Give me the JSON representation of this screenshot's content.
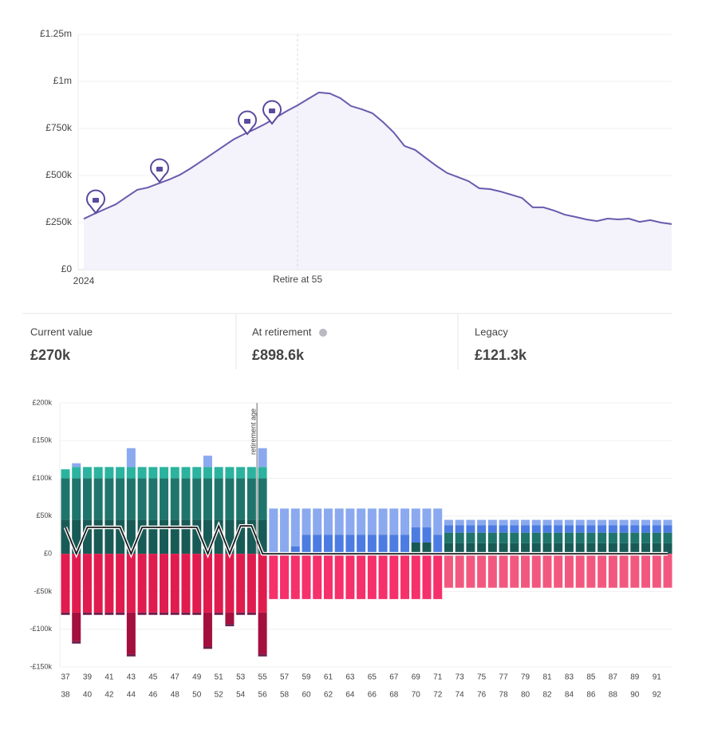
{
  "chart_data": [
    {
      "type": "area",
      "categories": [
        "2024",
        null,
        null,
        null,
        null,
        null,
        null,
        null,
        null,
        null,
        null,
        null,
        null,
        null,
        null,
        null,
        null,
        null,
        null,
        null,
        null,
        null,
        null,
        null,
        null,
        null,
        null,
        null,
        null,
        null,
        null,
        null,
        null,
        null,
        null,
        null,
        null,
        null,
        null,
        null,
        null,
        null,
        null,
        null,
        null,
        null,
        null,
        null,
        null,
        null,
        null,
        null,
        null,
        null,
        null,
        null
      ],
      "values": [
        270000,
        297000,
        322000,
        347000,
        386000,
        424000,
        436000,
        458000,
        479000,
        504000,
        538000,
        576000,
        614000,
        653000,
        691000,
        720000,
        746000,
        775000,
        809000,
        843000,
        873000,
        907000,
        941000,
        936000,
        911000,
        869000,
        852000,
        831000,
        784000,
        729000,
        657000,
        636000,
        593000,
        551000,
        513000,
        492000,
        470000,
        432000,
        428000,
        415000,
        398000,
        381000,
        331000,
        331000,
        314000,
        292000,
        280000,
        267000,
        258000,
        271000,
        267000,
        271000,
        254000,
        263000,
        250000,
        242000
      ],
      "color": "#6a5aae",
      "fill": "#f4f2fa",
      "ylim": [
        0,
        1250000
      ],
      "yticks": [
        {
          "value": 0,
          "label": "£0"
        },
        {
          "value": 250000,
          "label": "£250k"
        },
        {
          "value": 500000,
          "label": "£500k"
        },
        {
          "value": 750000,
          "label": "£750k"
        },
        {
          "value": 1000000,
          "label": "£1m"
        },
        {
          "value": 1250000,
          "label": "£1.25m"
        }
      ],
      "grid": true,
      "annotations": [
        {
          "text": "Retire at 55",
          "at": 20
        }
      ]
    },
    {
      "type": "bar",
      "stacked": true,
      "categories": [
        "37",
        "38",
        "39",
        "40",
        "41",
        "42",
        "43",
        "44",
        "45",
        "46",
        "47",
        "48",
        "49",
        "50",
        "51",
        "52",
        "53",
        "54",
        "55",
        "56",
        "57",
        "58",
        "59",
        "60",
        "61",
        "62",
        "63",
        "64",
        "65",
        "66",
        "67",
        "68",
        "69",
        "70",
        "71",
        "72",
        "73",
        "74",
        "75",
        "76",
        "77",
        "78",
        "79",
        "80",
        "81",
        "82",
        "83",
        "84",
        "85",
        "86",
        "87",
        "88",
        "89",
        "90",
        "91",
        "92"
      ],
      "ylim": [
        -150000,
        200000
      ],
      "yticks": [
        {
          "value": 200000,
          "label": "£200k"
        },
        {
          "value": 150000,
          "label": "£150k"
        },
        {
          "value": 100000,
          "label": "£100k"
        },
        {
          "value": 50000,
          "label": "£50k"
        },
        {
          "value": 0,
          "label": "£0"
        },
        {
          "value": -50000,
          "label": "-£50k"
        },
        {
          "value": -100000,
          "label": "-£100k"
        },
        {
          "value": -150000,
          "label": "-£150k"
        }
      ],
      "grid": true,
      "annotations": [
        {
          "text": "retirement age",
          "at": 18
        }
      ],
      "series": [
        {
          "color": "#185b56",
          "values": [
            45000,
            45000,
            45000,
            45000,
            45000,
            45000,
            45000,
            45000,
            45000,
            45000,
            45000,
            45000,
            45000,
            45000,
            45000,
            45000,
            45000,
            45000,
            45000,
            0,
            0,
            0,
            0,
            0,
            0,
            0,
            0,
            0,
            0,
            0,
            0,
            0,
            15000,
            15000,
            0,
            14000,
            14000,
            14000,
            14000,
            14000,
            14000,
            14000,
            14000,
            14000,
            14000,
            14000,
            14000,
            14000,
            14000,
            14000,
            14000,
            14000,
            14000,
            14000,
            14000,
            14000
          ]
        },
        {
          "color": "#1f756c",
          "values": [
            55000,
            55000,
            55000,
            55000,
            55000,
            55000,
            55000,
            55000,
            55000,
            55000,
            55000,
            55000,
            55000,
            55000,
            55000,
            55000,
            55000,
            55000,
            55000,
            0,
            0,
            0,
            0,
            0,
            0,
            0,
            0,
            0,
            0,
            0,
            0,
            0,
            0,
            0,
            0,
            14000,
            14000,
            14000,
            14000,
            14000,
            14000,
            14000,
            14000,
            14000,
            14000,
            14000,
            14000,
            14000,
            14000,
            14000,
            14000,
            14000,
            14000,
            14000,
            14000,
            14000
          ]
        },
        {
          "color": "#2bb39f",
          "values": [
            12000,
            15000,
            15000,
            15000,
            15000,
            15000,
            15000,
            15000,
            15000,
            15000,
            15000,
            15000,
            15000,
            15000,
            15000,
            15000,
            15000,
            15000,
            15000,
            0,
            0,
            0,
            0,
            0,
            0,
            0,
            0,
            0,
            0,
            0,
            0,
            0,
            0,
            0,
            0,
            0,
            0,
            0,
            0,
            0,
            0,
            0,
            0,
            0,
            0,
            0,
            0,
            0,
            0,
            0,
            0,
            0,
            0,
            0,
            0,
            0
          ]
        },
        {
          "color": "#4c7ce2",
          "values": [
            0,
            0,
            0,
            0,
            0,
            0,
            0,
            0,
            0,
            0,
            0,
            0,
            0,
            0,
            0,
            0,
            0,
            0,
            0,
            0,
            0,
            10000,
            25000,
            25000,
            25000,
            25000,
            25000,
            25000,
            25000,
            25000,
            25000,
            25000,
            20000,
            20000,
            25000,
            10000,
            10000,
            10000,
            10000,
            10000,
            10000,
            10000,
            10000,
            10000,
            10000,
            10000,
            10000,
            10000,
            10000,
            10000,
            10000,
            10000,
            10000,
            10000,
            10000,
            10000
          ]
        },
        {
          "color": "#8ba9ef",
          "values": [
            0,
            5000,
            0,
            0,
            0,
            0,
            25000,
            0,
            0,
            0,
            0,
            0,
            0,
            15000,
            0,
            0,
            0,
            0,
            25000,
            60000,
            60000,
            50000,
            35000,
            35000,
            35000,
            35000,
            35000,
            35000,
            35000,
            35000,
            35000,
            35000,
            25000,
            25000,
            35000,
            7000,
            7000,
            7000,
            7000,
            7000,
            7000,
            7000,
            7000,
            7000,
            7000,
            7000,
            7000,
            7000,
            7000,
            7000,
            7000,
            7000,
            7000,
            7000,
            7000,
            7000
          ]
        },
        {
          "color": "#e01b4e",
          "values": [
            -78000,
            -78000,
            -78000,
            -78000,
            -78000,
            -78000,
            -78000,
            -78000,
            -78000,
            -78000,
            -78000,
            -78000,
            -78000,
            -78000,
            -78000,
            -78000,
            -78000,
            -78000,
            -78000,
            0,
            0,
            0,
            0,
            0,
            0,
            0,
            0,
            0,
            0,
            0,
            0,
            0,
            0,
            0,
            0,
            0,
            0,
            0,
            0,
            0,
            0,
            0,
            0,
            0,
            0,
            0,
            0,
            0,
            0,
            0,
            0,
            0,
            0,
            0,
            0,
            0
          ]
        },
        {
          "color": "#f5306a",
          "values": [
            0,
            0,
            0,
            0,
            0,
            0,
            0,
            0,
            0,
            0,
            0,
            0,
            0,
            0,
            0,
            0,
            0,
            0,
            0,
            -60000,
            -60000,
            -60000,
            -60000,
            -60000,
            -60000,
            -60000,
            -60000,
            -60000,
            -60000,
            -60000,
            -60000,
            -60000,
            -60000,
            -60000,
            -60000,
            0,
            0,
            0,
            0,
            0,
            0,
            0,
            0,
            0,
            0,
            0,
            0,
            0,
            0,
            0,
            0,
            0,
            0,
            0,
            0,
            0
          ]
        },
        {
          "color": "#f2587f",
          "values": [
            0,
            0,
            0,
            0,
            0,
            0,
            0,
            0,
            0,
            0,
            0,
            0,
            0,
            0,
            0,
            0,
            0,
            0,
            0,
            0,
            0,
            0,
            0,
            0,
            0,
            0,
            0,
            0,
            0,
            0,
            0,
            0,
            0,
            0,
            0,
            -45000,
            -45000,
            -45000,
            -45000,
            -45000,
            -45000,
            -45000,
            -45000,
            -45000,
            -45000,
            -45000,
            -45000,
            -45000,
            -45000,
            -45000,
            -45000,
            -45000,
            -45000,
            -45000,
            -45000,
            -45000
          ]
        },
        {
          "color": "#a3103e",
          "values": [
            0,
            -38000,
            0,
            0,
            0,
            0,
            -55000,
            0,
            0,
            0,
            0,
            0,
            0,
            -45000,
            0,
            -15000,
            0,
            0,
            -55000,
            0,
            0,
            0,
            0,
            0,
            0,
            0,
            0,
            0,
            0,
            0,
            0,
            0,
            0,
            0,
            0,
            0,
            0,
            0,
            0,
            0,
            0,
            0,
            0,
            0,
            0,
            0,
            0,
            0,
            0,
            0,
            0,
            0,
            0,
            0,
            0,
            0
          ]
        },
        {
          "color": "#6b1f4b",
          "values": [
            -3000,
            -3000,
            -3000,
            -3000,
            -3000,
            -3000,
            -3000,
            -3000,
            -3000,
            -3000,
            -3000,
            -3000,
            -3000,
            -3000,
            -3000,
            -3000,
            -3000,
            -3000,
            -3000,
            0,
            0,
            0,
            0,
            0,
            0,
            0,
            0,
            0,
            0,
            0,
            0,
            0,
            0,
            0,
            0,
            0,
            0,
            0,
            0,
            0,
            0,
            0,
            0,
            0,
            0,
            0,
            0,
            0,
            0,
            0,
            0,
            0,
            0,
            0,
            0,
            0
          ]
        },
        {
          "type": "line",
          "color": "#1a1a1a",
          "values": [
            35000,
            0,
            35000,
            35000,
            35000,
            35000,
            0,
            35000,
            35000,
            35000,
            35000,
            35000,
            35000,
            0,
            37000,
            0,
            37000,
            37000,
            0,
            0,
            0,
            0,
            0,
            0,
            0,
            0,
            0,
            0,
            0,
            0,
            0,
            0,
            0,
            0,
            0,
            0,
            0,
            0,
            0,
            0,
            0,
            0,
            0,
            0,
            0,
            0,
            0,
            0,
            0,
            0,
            0,
            0,
            0,
            0,
            0,
            0
          ]
        }
      ]
    }
  ],
  "stats": [
    {
      "label": "Current value",
      "value": "£270k"
    },
    {
      "label": "At retirement",
      "value": "£898.6k"
    },
    {
      "label": "Legacy",
      "value": "£121.3k"
    }
  ]
}
